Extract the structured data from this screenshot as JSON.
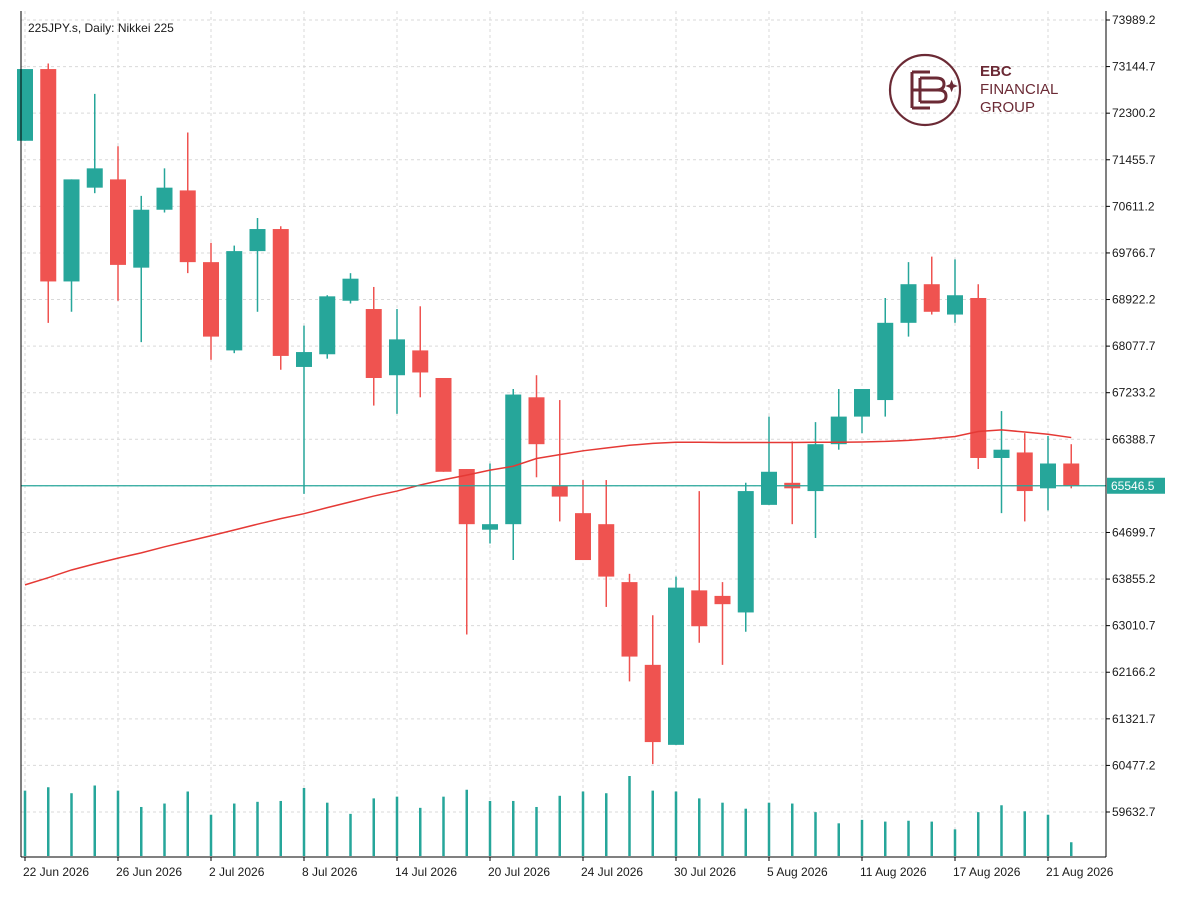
{
  "header": {
    "title": "225JPY.s, Daily:  Nikkei 225"
  },
  "logo": {
    "line1": "EBC",
    "line2": "FINANCIAL",
    "line3": "GROUP",
    "color": "#6b2a35"
  },
  "colors": {
    "bull": "#26a69a",
    "bear": "#ef5350",
    "ma": "#e53935",
    "current_price_line": "#26a69a",
    "grid": "#d9d9d9",
    "axis": "#000000"
  },
  "chart_data": {
    "type": "candlestick",
    "title": "225JPY.s, Daily:  Nikkei 225",
    "y_axis": {
      "position": "right",
      "min": 59632.7,
      "max": 73989.2,
      "ticks": [
        "73989.2",
        "73144.7",
        "72300.2",
        "71455.7",
        "70611.2",
        "69766.7",
        "68922.2",
        "68077.7",
        "67233.2",
        "66388.7",
        "65546.5",
        "64699.7",
        "63855.2",
        "63010.7",
        "62166.2",
        "61321.7",
        "60477.2",
        "59632.7"
      ],
      "current_price": "65546.5"
    },
    "x_axis": {
      "tick_labels": [
        "22 Jun 2026",
        "26 Jun 2026",
        "2 Jul 2026",
        "8 Jul 2026",
        "14 Jul 2026",
        "20 Jul 2026",
        "24 Jul 2026",
        "30 Jul 2026",
        "5 Aug 2026",
        "11 Aug 2026",
        "17 Aug 2026",
        "21 Aug 2026"
      ],
      "tick_indices": [
        0,
        4,
        8,
        12,
        16,
        20,
        24,
        28,
        32,
        36,
        40,
        44
      ]
    },
    "grid": true,
    "candles": [
      {
        "o": 71800,
        "h": 73100,
        "l": 71800,
        "c": 73100
      },
      {
        "o": 73100,
        "h": 73200,
        "l": 68500,
        "c": 69250
      },
      {
        "o": 69250,
        "h": 71100,
        "l": 68700,
        "c": 71100
      },
      {
        "o": 70950,
        "h": 72650,
        "l": 70850,
        "c": 71300
      },
      {
        "o": 71100,
        "h": 71700,
        "l": 68900,
        "c": 69550
      },
      {
        "o": 69500,
        "h": 70800,
        "l": 68150,
        "c": 70550
      },
      {
        "o": 70550,
        "h": 71300,
        "l": 70500,
        "c": 70950
      },
      {
        "o": 70900,
        "h": 71950,
        "l": 69400,
        "c": 69600
      },
      {
        "o": 69600,
        "h": 69950,
        "l": 67830,
        "c": 68250
      },
      {
        "o": 68000,
        "h": 69900,
        "l": 67950,
        "c": 69800
      },
      {
        "o": 69800,
        "h": 70400,
        "l": 68700,
        "c": 70200
      },
      {
        "o": 70200,
        "h": 70250,
        "l": 67650,
        "c": 67900
      },
      {
        "o": 67700,
        "h": 68450,
        "l": 65400,
        "c": 67970
      },
      {
        "o": 67930,
        "h": 69000,
        "l": 67850,
        "c": 68980
      },
      {
        "o": 68900,
        "h": 69400,
        "l": 68850,
        "c": 69300
      },
      {
        "o": 68750,
        "h": 69150,
        "l": 67000,
        "c": 67500
      },
      {
        "o": 67550,
        "h": 68750,
        "l": 66850,
        "c": 68200
      },
      {
        "o": 68000,
        "h": 68800,
        "l": 67150,
        "c": 67600
      },
      {
        "o": 67500,
        "h": 67500,
        "l": 65800,
        "c": 65800
      },
      {
        "o": 65850,
        "h": 65850,
        "l": 62850,
        "c": 64850
      },
      {
        "o": 64750,
        "h": 65950,
        "l": 64500,
        "c": 64850
      },
      {
        "o": 64850,
        "h": 67300,
        "l": 64200,
        "c": 67200
      },
      {
        "o": 67150,
        "h": 67550,
        "l": 65700,
        "c": 66300
      },
      {
        "o": 65550,
        "h": 67100,
        "l": 64900,
        "c": 65350
      },
      {
        "o": 65050,
        "h": 65650,
        "l": 64200,
        "c": 64200
      },
      {
        "o": 64850,
        "h": 65650,
        "l": 63350,
        "c": 63900
      },
      {
        "o": 63800,
        "h": 63950,
        "l": 62000,
        "c": 62450
      },
      {
        "o": 62300,
        "h": 63200,
        "l": 60500,
        "c": 60900
      },
      {
        "o": 60850,
        "h": 63900,
        "l": 60850,
        "c": 63700
      },
      {
        "o": 63650,
        "h": 65450,
        "l": 62700,
        "c": 63000
      },
      {
        "o": 63550,
        "h": 63800,
        "l": 62300,
        "c": 63400
      },
      {
        "o": 63250,
        "h": 65600,
        "l": 62900,
        "c": 65450
      },
      {
        "o": 65200,
        "h": 66800,
        "l": 65200,
        "c": 65800
      },
      {
        "o": 65600,
        "h": 66350,
        "l": 64850,
        "c": 65500
      },
      {
        "o": 65450,
        "h": 66700,
        "l": 64600,
        "c": 66300
      },
      {
        "o": 66300,
        "h": 67300,
        "l": 66200,
        "c": 66800
      },
      {
        "o": 66800,
        "h": 67250,
        "l": 66500,
        "c": 67300
      },
      {
        "o": 67100,
        "h": 68950,
        "l": 66800,
        "c": 68500
      },
      {
        "o": 68500,
        "h": 69600,
        "l": 68250,
        "c": 69200
      },
      {
        "o": 69200,
        "h": 69700,
        "l": 68650,
        "c": 68700
      },
      {
        "o": 68650,
        "h": 69650,
        "l": 68500,
        "c": 69000
      },
      {
        "o": 68950,
        "h": 69200,
        "l": 65850,
        "c": 66050
      },
      {
        "o": 66050,
        "h": 66900,
        "l": 65050,
        "c": 66200
      },
      {
        "o": 66150,
        "h": 66500,
        "l": 64900,
        "c": 65450
      },
      {
        "o": 65500,
        "h": 66450,
        "l": 65100,
        "c": 65950
      },
      {
        "o": 65950,
        "h": 66300,
        "l": 65500,
        "c": 65550
      }
    ],
    "volumes": [
      0.76,
      0.8,
      0.73,
      0.82,
      0.76,
      0.57,
      0.61,
      0.75,
      0.48,
      0.61,
      0.63,
      0.64,
      0.79,
      0.62,
      0.49,
      0.67,
      0.69,
      0.56,
      0.69,
      0.77,
      0.64,
      0.64,
      0.57,
      0.7,
      0.75,
      0.73,
      0.93,
      0.76,
      0.75,
      0.67,
      0.62,
      0.55,
      0.62,
      0.61,
      0.51,
      0.38,
      0.42,
      0.4,
      0.41,
      0.4,
      0.31,
      0.51,
      0.59,
      0.52,
      0.48,
      0.16
    ],
    "moving_average": {
      "values": [
        63750,
        63880,
        64020,
        64130,
        64235,
        64330,
        64440,
        64540,
        64640,
        64745,
        64850,
        64950,
        65040,
        65150,
        65255,
        65360,
        65450,
        65560,
        65655,
        65740,
        65830,
        65900,
        66040,
        66110,
        66180,
        66230,
        66280,
        66315,
        66335,
        66335,
        66330,
        66330,
        66330,
        66330,
        66335,
        66335,
        66340,
        66350,
        66370,
        66400,
        66440,
        66530,
        66560,
        66520,
        66480,
        66420
      ]
    }
  }
}
